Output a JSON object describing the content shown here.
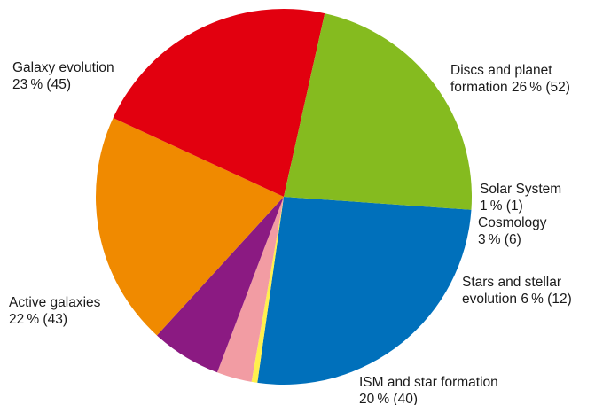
{
  "chart_data": {
    "type": "pie",
    "title": "",
    "slices": [
      {
        "name": "Discs and planet formation",
        "percent": 26,
        "count": 52,
        "color": "#0070bb",
        "label_lines": [
          "Discs and planet",
          "formation 26 % (52)"
        ]
      },
      {
        "name": "Solar System",
        "percent": 1,
        "count": 1,
        "color": "#fff04d",
        "label_lines": [
          "Solar System",
          "1 % (1)"
        ]
      },
      {
        "name": "Cosmology",
        "percent": 3,
        "count": 6,
        "color": "#f29ca3",
        "label_lines": [
          "Cosmology",
          "3 % (6)"
        ]
      },
      {
        "name": "Stars and stellar evolution",
        "percent": 6,
        "count": 12,
        "color": "#8b1a82",
        "label_lines": [
          "Stars and stellar",
          "evolution 6 % (12)"
        ]
      },
      {
        "name": "ISM and star formation",
        "percent": 20,
        "count": 40,
        "color": "#f08a00",
        "label_lines": [
          "ISM and star formation",
          "20 % (40)"
        ]
      },
      {
        "name": "Active galaxies",
        "percent": 22,
        "count": 43,
        "color": "#e2000f",
        "label_lines": [
          "Active galaxies",
          "22 % (43)"
        ]
      },
      {
        "name": "Galaxy evolution",
        "percent": 23,
        "count": 45,
        "color": "#85bb1f",
        "label_lines": [
          "Galaxy evolution",
          "23 % (45)"
        ]
      }
    ]
  }
}
